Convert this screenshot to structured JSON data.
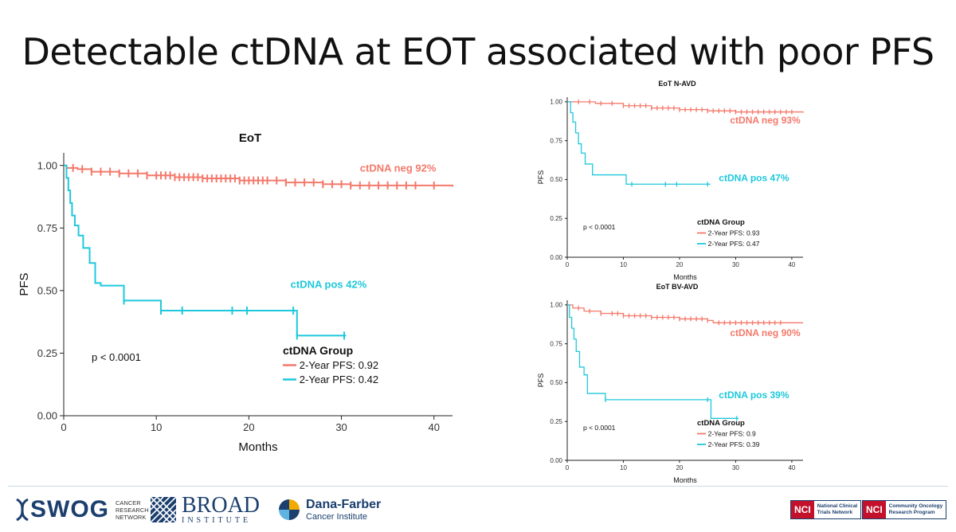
{
  "slide": {
    "title": "Detectable ctDNA at EOT associated with poor PFS"
  },
  "colors": {
    "neg": "#f4796b",
    "pos": "#1ec8dc",
    "axis": "#222222"
  },
  "chart_data": [
    {
      "type": "line",
      "title": "EoT",
      "xlabel": "Months",
      "ylabel": "PFS",
      "xlim": [
        0,
        42
      ],
      "ylim": [
        0,
        1.05
      ],
      "xticks": [
        0,
        10,
        20,
        30,
        40
      ],
      "yticks": [
        0.0,
        0.25,
        0.5,
        0.75,
        1.0
      ],
      "ytick_labels": [
        "0.00",
        "0.25",
        "0.50",
        "0.75",
        "1.00"
      ],
      "pvalue": "p < 0.0001",
      "legend_title": "ctDNA Group",
      "series": [
        {
          "name": "ctDNA neg",
          "label": "ctDNA neg 92%",
          "legend": "2-Year PFS: 0.92",
          "color": "neg",
          "label_pos": [
            32,
            0.975
          ],
          "steps": [
            [
              0,
              1.0
            ],
            [
              0.3,
              0.99
            ],
            [
              1.5,
              0.985
            ],
            [
              3,
              0.975
            ],
            [
              6,
              0.968
            ],
            [
              9,
              0.96
            ],
            [
              12,
              0.953
            ],
            [
              15,
              0.948
            ],
            [
              19,
              0.94
            ],
            [
              24,
              0.932
            ],
            [
              28,
              0.925
            ],
            [
              31,
              0.92
            ],
            [
              42,
              0.915
            ]
          ],
          "censors": [
            1,
            2,
            3,
            4,
            5,
            6,
            7,
            8,
            9,
            10,
            10.5,
            11,
            11.5,
            12,
            12.5,
            13,
            13.5,
            14,
            14.5,
            15,
            15.5,
            16,
            16.5,
            17,
            17.5,
            18,
            18.5,
            19,
            19.5,
            20,
            20.5,
            21,
            21.5,
            22,
            23,
            24,
            25,
            26,
            27,
            28,
            29,
            30,
            31,
            32,
            33,
            34,
            35,
            36,
            37,
            38,
            40
          ]
        },
        {
          "name": "ctDNA pos",
          "label": "ctDNA pos 42%",
          "legend": "2-Year PFS: 0.42",
          "color": "pos",
          "label_pos": [
            24.5,
            0.51
          ],
          "steps": [
            [
              0,
              1.0
            ],
            [
              0.3,
              0.95
            ],
            [
              0.5,
              0.9
            ],
            [
              0.7,
              0.85
            ],
            [
              0.9,
              0.8
            ],
            [
              1.2,
              0.76
            ],
            [
              1.6,
              0.72
            ],
            [
              2.1,
              0.67
            ],
            [
              2.8,
              0.61
            ],
            [
              3.4,
              0.53
            ],
            [
              4,
              0.52
            ],
            [
              6.5,
              0.46
            ],
            [
              10.5,
              0.42
            ],
            [
              24.8,
              0.42
            ],
            [
              25.2,
              0.32
            ],
            [
              30.5,
              0.32
            ]
          ],
          "censors": [
            6.5,
            10.5,
            12.8,
            18.2,
            19.8,
            24.8,
            25.2,
            30.3
          ]
        }
      ]
    },
    {
      "type": "line",
      "title": "EoT N-AVD",
      "xlabel": "Months",
      "ylabel": "PFS",
      "xlim": [
        0,
        42
      ],
      "ylim": [
        0,
        1.03
      ],
      "xticks": [
        0,
        10,
        20,
        30,
        40
      ],
      "yticks": [
        0.0,
        0.25,
        0.5,
        0.75,
        1.0
      ],
      "ytick_labels": [
        "0.00",
        "0.25",
        "0.50",
        "0.75",
        "1.00"
      ],
      "pvalue": "p < 0.0001",
      "legend_title": "ctDNA Group",
      "series": [
        {
          "name": "ctDNA neg",
          "label": "ctDNA neg 93%",
          "legend": "2-Year PFS: 0.93",
          "color": "neg",
          "label_pos": [
            29,
            0.86
          ],
          "steps": [
            [
              0,
              1.0
            ],
            [
              5,
              0.99
            ],
            [
              10,
              0.975
            ],
            [
              15,
              0.96
            ],
            [
              20,
              0.95
            ],
            [
              25,
              0.942
            ],
            [
              30,
              0.935
            ],
            [
              42,
              0.93
            ]
          ],
          "censors": [
            2,
            4,
            6,
            8,
            10,
            11,
            12,
            13,
            14,
            15,
            16,
            17,
            18,
            19,
            20,
            21,
            22,
            23,
            24,
            25,
            26,
            27,
            28,
            29,
            30,
            31,
            32,
            33,
            34,
            35,
            36,
            37,
            38,
            39,
            40
          ]
        },
        {
          "name": "ctDNA pos",
          "label": "ctDNA pos 47%",
          "legend": "2-Year PFS: 0.47",
          "color": "pos",
          "label_pos": [
            27,
            0.49
          ],
          "steps": [
            [
              0,
              1.0
            ],
            [
              0.6,
              0.93
            ],
            [
              1,
              0.87
            ],
            [
              1.5,
              0.8
            ],
            [
              2,
              0.73
            ],
            [
              2.5,
              0.67
            ],
            [
              3.2,
              0.6
            ],
            [
              4.5,
              0.53
            ],
            [
              7,
              0.53
            ],
            [
              7.2,
              0.53
            ],
            [
              10.5,
              0.47
            ],
            [
              25.5,
              0.47
            ]
          ],
          "censors": [
            11.5,
            17.5,
            19.5,
            25
          ]
        }
      ]
    },
    {
      "type": "line",
      "title": "EoT BV-AVD",
      "xlabel": "Months",
      "ylabel": "PFS",
      "xlim": [
        0,
        42
      ],
      "ylim": [
        0,
        1.03
      ],
      "xticks": [
        0,
        10,
        20,
        30,
        40
      ],
      "yticks": [
        0.0,
        0.25,
        0.5,
        0.75,
        1.0
      ],
      "ytick_labels": [
        "0.00",
        "0.25",
        "0.50",
        "0.75",
        "1.00"
      ],
      "pvalue": "p < 0.0001",
      "legend_title": "ctDNA Group",
      "series": [
        {
          "name": "ctDNA neg",
          "label": "ctDNA neg 90%",
          "legend": "2-Year PFS: 0.9",
          "color": "neg",
          "label_pos": [
            29,
            0.8
          ],
          "steps": [
            [
              0,
              1.0
            ],
            [
              1,
              0.98
            ],
            [
              3,
              0.96
            ],
            [
              6,
              0.945
            ],
            [
              10,
              0.93
            ],
            [
              15,
              0.92
            ],
            [
              20,
              0.91
            ],
            [
              25,
              0.9
            ],
            [
              26,
              0.885
            ],
            [
              42,
              0.885
            ]
          ],
          "censors": [
            2,
            4,
            6,
            8,
            9,
            10,
            11,
            12,
            13,
            14,
            15,
            16,
            17,
            18,
            19,
            20,
            21,
            22,
            23,
            24,
            25,
            27,
            28,
            29,
            30,
            31,
            32,
            33,
            34,
            35,
            36,
            37,
            38
          ]
        },
        {
          "name": "ctDNA pos",
          "label": "ctDNA pos 39%",
          "legend": "2-Year PFS: 0.39",
          "color": "pos",
          "label_pos": [
            27,
            0.4
          ],
          "steps": [
            [
              0,
              1.0
            ],
            [
              0.4,
              0.92
            ],
            [
              0.8,
              0.85
            ],
            [
              1.2,
              0.78
            ],
            [
              1.6,
              0.7
            ],
            [
              2.2,
              0.6
            ],
            [
              3,
              0.55
            ],
            [
              3.6,
              0.43
            ],
            [
              6.2,
              0.43
            ],
            [
              6.8,
              0.39
            ],
            [
              25,
              0.39
            ],
            [
              25.6,
              0.27
            ],
            [
              30.5,
              0.27
            ]
          ],
          "censors": [
            6.8,
            25,
            30.2
          ]
        }
      ]
    }
  ],
  "footer": {
    "swog": {
      "name": "SWOG",
      "sub1": "CANCER",
      "sub2": "RESEARCH",
      "sub3": "NETWORK"
    },
    "broad": {
      "name": "BROAD",
      "sub": "INSTITUTE"
    },
    "dfci": {
      "name": "Dana-Farber",
      "sub": "Cancer Institute"
    },
    "nctn": {
      "tag": "NCI",
      "line1": "National Clinical",
      "line2": "Trials Network"
    },
    "ncorp": {
      "tag": "NCI",
      "line1": "Community Oncology",
      "line2": "Research Program"
    }
  }
}
